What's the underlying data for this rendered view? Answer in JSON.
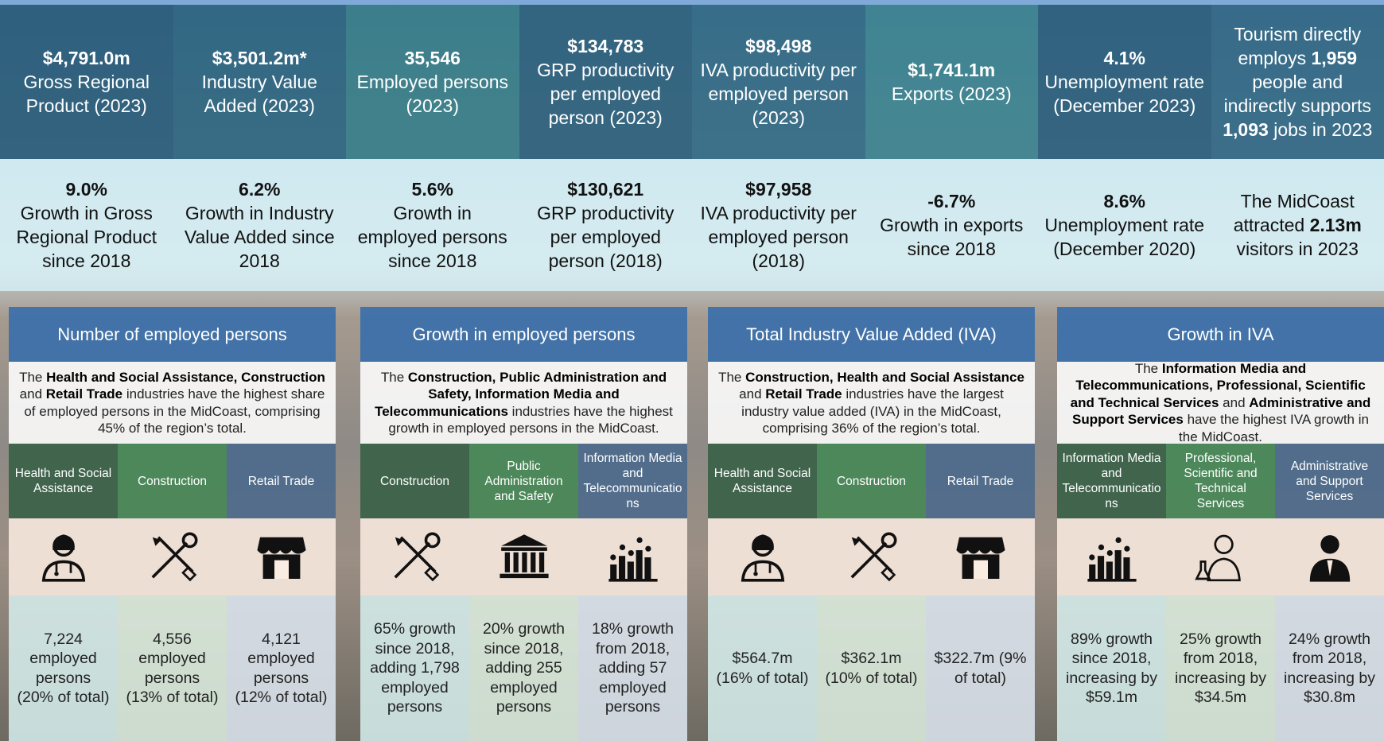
{
  "top_row": [
    {
      "value": "$4,791.0m",
      "label": "Gross Regional Product (2023)"
    },
    {
      "value": "$3,501.2m*",
      "label": "Industry Value Added (2023)"
    },
    {
      "value": "35,546",
      "label": "Employed persons (2023)"
    },
    {
      "value": "$134,783",
      "label": "GRP productivity per employed person (2023)"
    },
    {
      "value": "$98,498",
      "label": "IVA productivity per employed person (2023)"
    },
    {
      "value": "$1,741.1m",
      "label": "Exports (2023)"
    },
    {
      "value": "4.1%",
      "label": "Unemployment rate (December 2023)"
    },
    {
      "segments": [
        {
          "text": "Tourism directly employs ",
          "bold": false
        },
        {
          "text": "1,959",
          "bold": true
        },
        {
          "text": " people and indirectly supports ",
          "bold": false
        },
        {
          "text": "1,093",
          "bold": true
        },
        {
          "text": " jobs in 2023",
          "bold": false
        }
      ]
    }
  ],
  "second_row": [
    {
      "value": "9.0%",
      "label": "Growth in Gross Regional Product since 2018"
    },
    {
      "value": "6.2%",
      "label": "Growth in Industry Value Added since 2018"
    },
    {
      "value": "5.6%",
      "label": "Growth in employed persons since 2018"
    },
    {
      "value": "$130,621",
      "label": "GRP productivity per employed person (2018)"
    },
    {
      "value": "$97,958",
      "label": "IVA productivity per employed person (2018)"
    },
    {
      "value": "-6.7%",
      "label": "Growth in exports since 2018"
    },
    {
      "value": "8.6%",
      "label": "Unemployment rate (December 2020)"
    },
    {
      "segments": [
        {
          "text": "The MidCoast attracted ",
          "bold": false
        },
        {
          "text": "2.13m",
          "bold": true
        },
        {
          "text": " visitors in 2023",
          "bold": false
        }
      ]
    }
  ],
  "panels": [
    {
      "title": "Number of employed persons",
      "description": [
        {
          "text": "The ",
          "bold": false
        },
        {
          "text": "Health and Social Assistance, Construction",
          "bold": true
        },
        {
          "text": " and ",
          "bold": false
        },
        {
          "text": "Retail Trade",
          "bold": true
        },
        {
          "text": " industries have the highest share of employed persons in the MidCoast, comprising 45% of the region’s total.",
          "bold": false
        }
      ],
      "columns": [
        {
          "header": "Health and Social Assistance",
          "value": "7,224 employed persons (20% of total)"
        },
        {
          "header": "Construction",
          "value": "4,556 employed persons (13% of total)"
        },
        {
          "header": "Retail Trade",
          "value": "4,121 employed persons (12% of total)"
        }
      ]
    },
    {
      "title": "Growth in employed persons",
      "description": [
        {
          "text": "The ",
          "bold": false
        },
        {
          "text": "Construction, Public Administration and Safety, Information Media and Telecommunications",
          "bold": true
        },
        {
          "text": " industries have the highest growth in employed persons in the MidCoast.",
          "bold": false
        }
      ],
      "columns": [
        {
          "header": "Construction",
          "value": "65% growth since 2018, adding 1,798 employed persons"
        },
        {
          "header": "Public Administration and Safety",
          "value": "20% growth since 2018, adding 255 employed persons"
        },
        {
          "header": "Information Media and Telecommunications",
          "value": "18% growth from 2018, adding 57 employed persons"
        }
      ]
    },
    {
      "title": "Total Industry Value Added (IVA)",
      "description": [
        {
          "text": "The ",
          "bold": false
        },
        {
          "text": "Construction, Health and Social Assistance",
          "bold": true
        },
        {
          "text": " and ",
          "bold": false
        },
        {
          "text": "Retail Trade",
          "bold": true
        },
        {
          "text": " industries have the largest industry value added (IVA) in the MidCoast, comprising 36% of the region’s total.",
          "bold": false
        }
      ],
      "columns": [
        {
          "header": "Health and Social Assistance",
          "value": "$564.7m (16% of total)"
        },
        {
          "header": "Construction",
          "value": "$362.1m (10% of total)"
        },
        {
          "header": "Retail Trade",
          "value": "$322.7m (9% of total)"
        }
      ]
    },
    {
      "title": "Growth in IVA",
      "description": [
        {
          "text": "The ",
          "bold": false
        },
        {
          "text": "Information Media and Telecommunications, Professional, Scientific and Technical Services",
          "bold": true
        },
        {
          "text": " and ",
          "bold": false
        },
        {
          "text": "Administrative and Support Services",
          "bold": true
        },
        {
          "text": " have the highest IVA growth in the MidCoast.",
          "bold": false
        }
      ],
      "columns": [
        {
          "header": "Information Media and Telecommunications",
          "value": "89% growth since 2018, increasing by $59.1m"
        },
        {
          "header": "Professional, Scientific and Technical Services",
          "value": "25% growth from 2018, increasing by $34.5m"
        },
        {
          "header": "Administrative and Support Services",
          "value": "24% growth from 2018, increasing by $30.8m"
        }
      ]
    }
  ]
}
